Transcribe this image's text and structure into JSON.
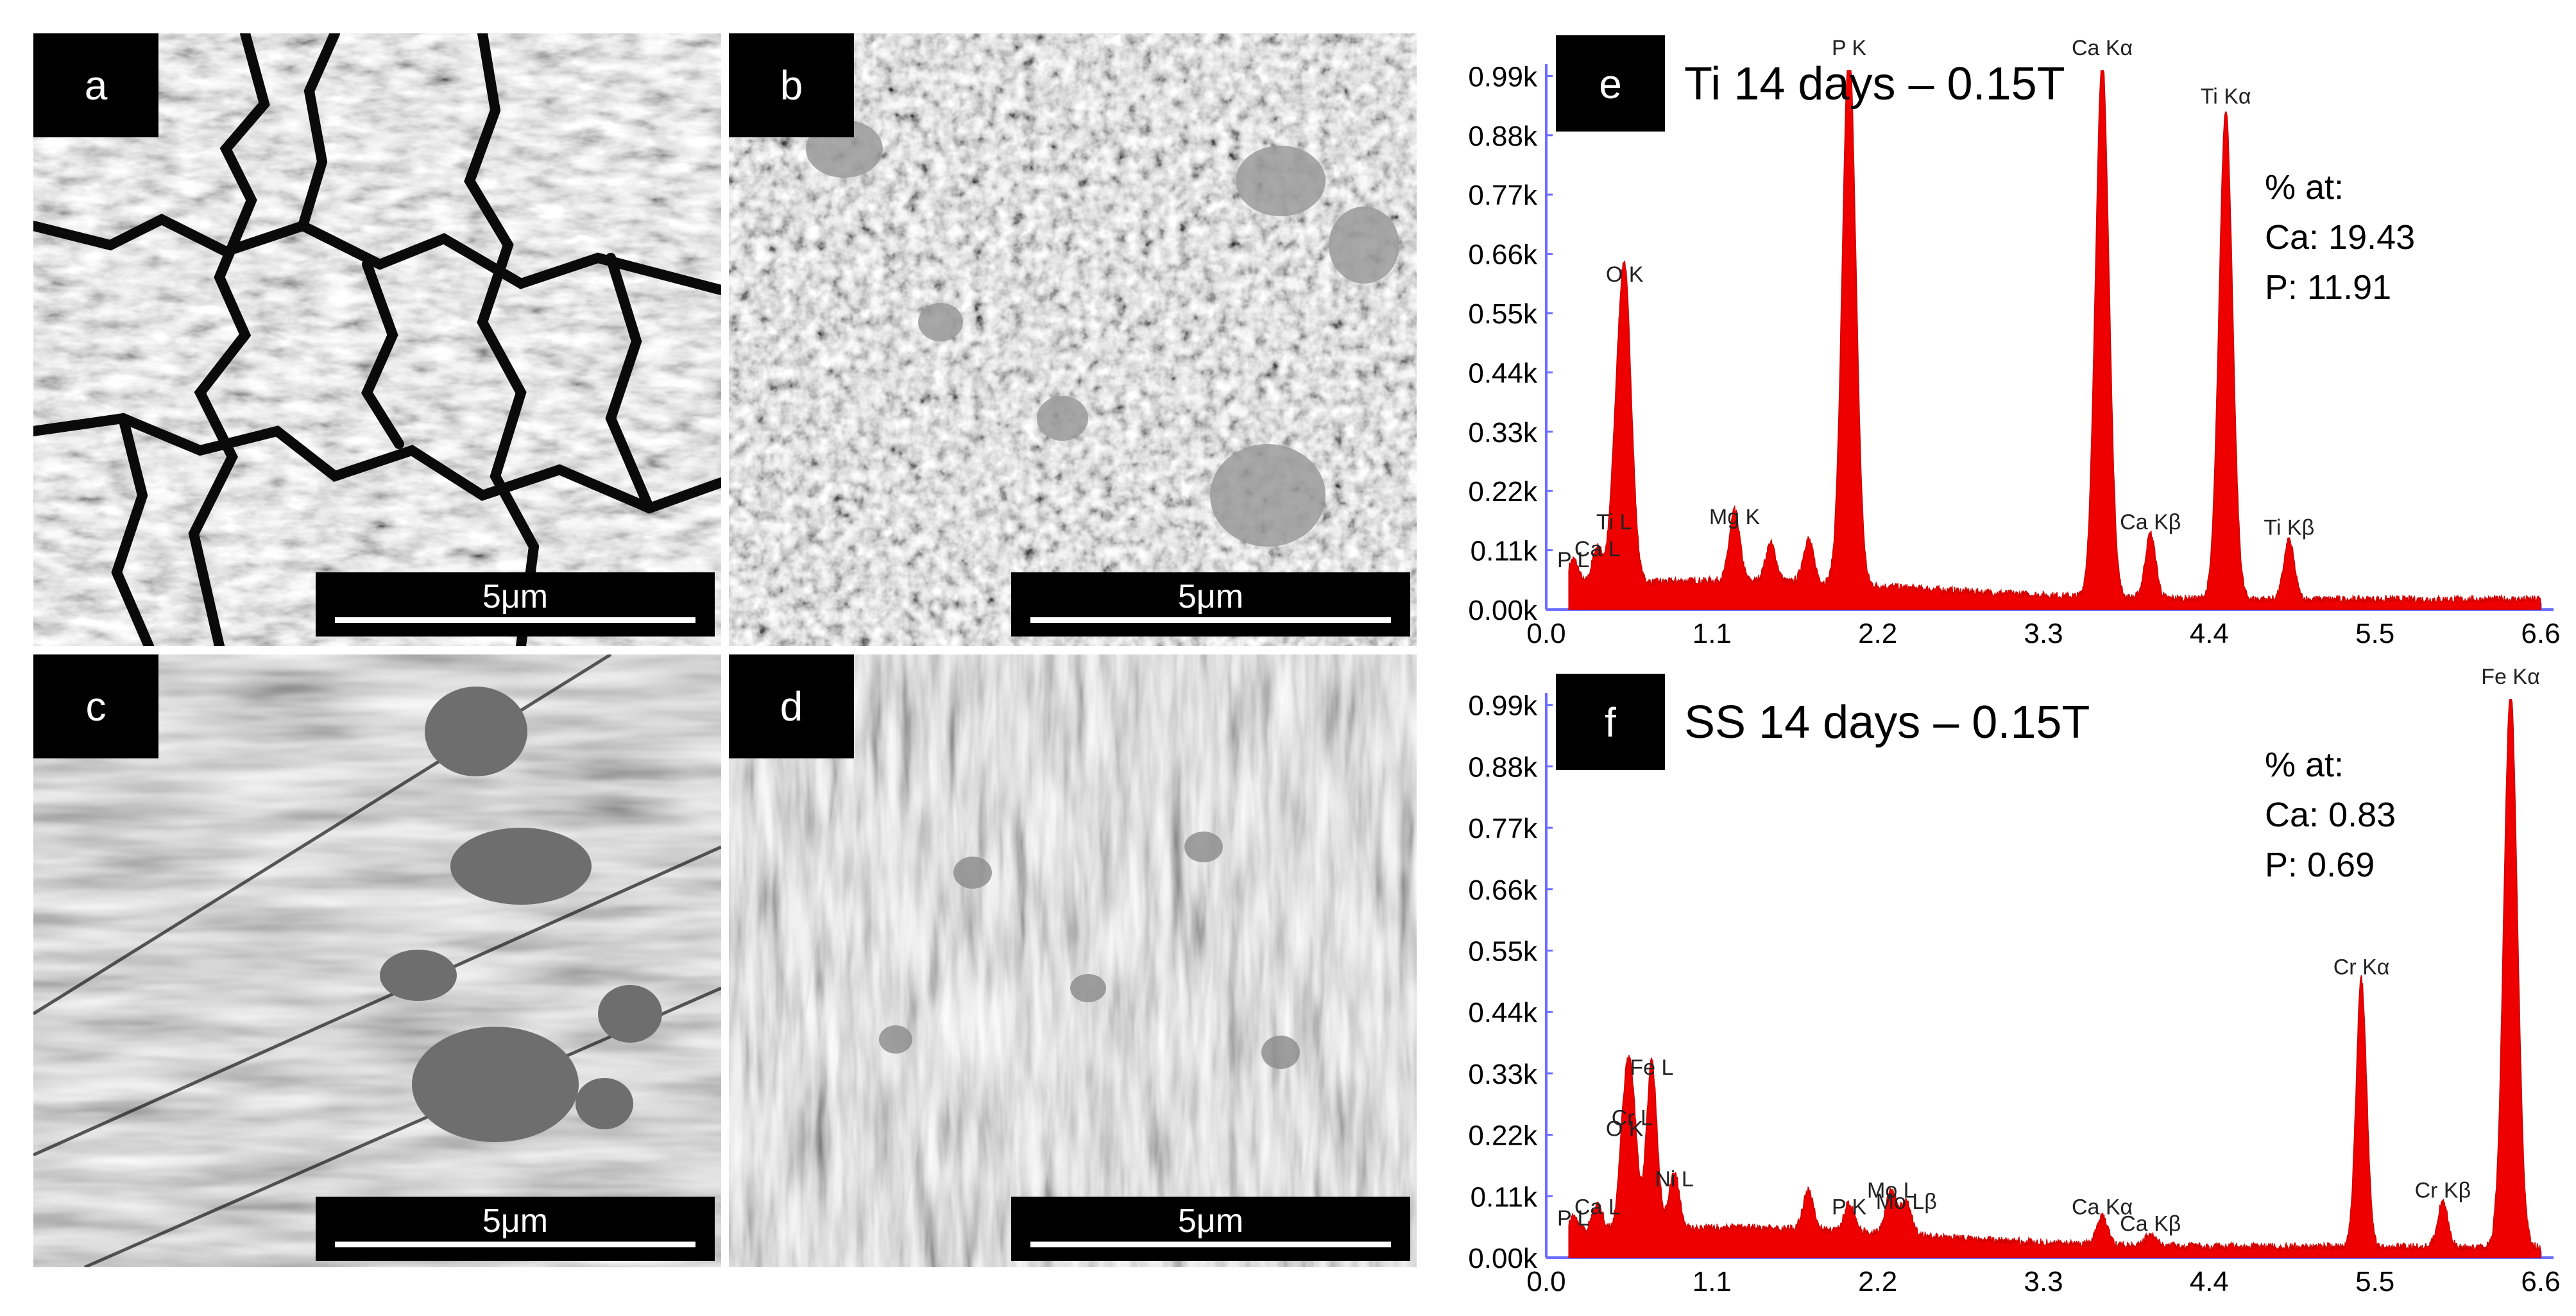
{
  "figure": {
    "panels": [
      {
        "letter": "a",
        "scale": "5μm"
      },
      {
        "letter": "b",
        "scale": "5μm"
      },
      {
        "letter": "c",
        "scale": "5μm"
      },
      {
        "letter": "d",
        "scale": "5μm"
      }
    ]
  },
  "chart_data": [
    {
      "type": "area",
      "panel_letter": "e",
      "title": "Ti 14 days – 0.15T",
      "xlim": [
        0.0,
        6.6
      ],
      "ylim": [
        0,
        1.0
      ],
      "xticks": [
        "0.0",
        "1.1",
        "2.2",
        "3.3",
        "4.4",
        "5.5",
        "6.6"
      ],
      "yticks": [
        "0.00k",
        "0.11k",
        "0.22k",
        "0.33k",
        "0.44k",
        "0.55k",
        "0.66k",
        "0.77k",
        "0.88k",
        "0.99k"
      ],
      "annotation": {
        "header": "% at:",
        "lines": [
          "Ca: 19.43",
          "P: 11.91"
        ]
      },
      "peaks": [
        {
          "label": "P  L",
          "x": 0.18,
          "y": 0.05
        },
        {
          "label": "Ca L",
          "x": 0.34,
          "y": 0.07
        },
        {
          "label": "Ti L",
          "x": 0.45,
          "y": 0.12
        },
        {
          "label": "O  K",
          "x": 0.52,
          "y": 0.58
        },
        {
          "label": "Mg K",
          "x": 1.25,
          "y": 0.13
        },
        {
          "label": "P  K",
          "x": 2.01,
          "y": 1.0
        },
        {
          "label": "Ca Kα",
          "x": 3.69,
          "y": 1.0
        },
        {
          "label": "Ca Kβ",
          "x": 4.01,
          "y": 0.12
        },
        {
          "label": "Ti Kα",
          "x": 4.51,
          "y": 0.91
        },
        {
          "label": "Ti Kβ",
          "x": 4.93,
          "y": 0.11
        }
      ],
      "minor_peaks": [
        {
          "x": 1.49,
          "y": 0.07
        },
        {
          "x": 1.74,
          "y": 0.08
        }
      ]
    },
    {
      "type": "area",
      "panel_letter": "f",
      "title": "SS 14 days – 0.15T",
      "xlim": [
        0.0,
        6.6
      ],
      "ylim": [
        0,
        1.0
      ],
      "xticks": [
        "0.0",
        "1.1",
        "2.2",
        "3.3",
        "4.4",
        "5.5",
        "6.6"
      ],
      "yticks": [
        "0.00k",
        "0.11k",
        "0.22k",
        "0.33k",
        "0.44k",
        "0.55k",
        "0.66k",
        "0.77k",
        "0.88k",
        "0.99k"
      ],
      "annotation": {
        "header": "% at:",
        "lines": [
          "Ca: 0.83",
          "P: 0.69"
        ]
      },
      "peaks": [
        {
          "label": "P  L",
          "x": 0.18,
          "y": 0.03
        },
        {
          "label": "Ca L",
          "x": 0.34,
          "y": 0.05
        },
        {
          "label": "O  K",
          "x": 0.52,
          "y": 0.19
        },
        {
          "label": "Cr L",
          "x": 0.57,
          "y": 0.21
        },
        {
          "label": "Fe L",
          "x": 0.7,
          "y": 0.3
        },
        {
          "label": "Ni L",
          "x": 0.85,
          "y": 0.1
        },
        {
          "label": "P  K",
          "x": 2.01,
          "y": 0.05
        },
        {
          "label": "Mo L",
          "x": 2.29,
          "y": 0.08
        },
        {
          "label": "Mo Lβ",
          "x": 2.39,
          "y": 0.06
        },
        {
          "label": "Ca Kα",
          "x": 3.69,
          "y": 0.05
        },
        {
          "label": "Ca Kβ",
          "x": 4.01,
          "y": 0.02
        },
        {
          "label": "Cr Kα",
          "x": 5.41,
          "y": 0.48
        },
        {
          "label": "Cr Kβ",
          "x": 5.95,
          "y": 0.08
        },
        {
          "label": "Fe Kα",
          "x": 6.4,
          "y": 1.0
        }
      ],
      "minor_peaks": [
        {
          "x": 1.74,
          "y": 0.07
        }
      ]
    }
  ]
}
